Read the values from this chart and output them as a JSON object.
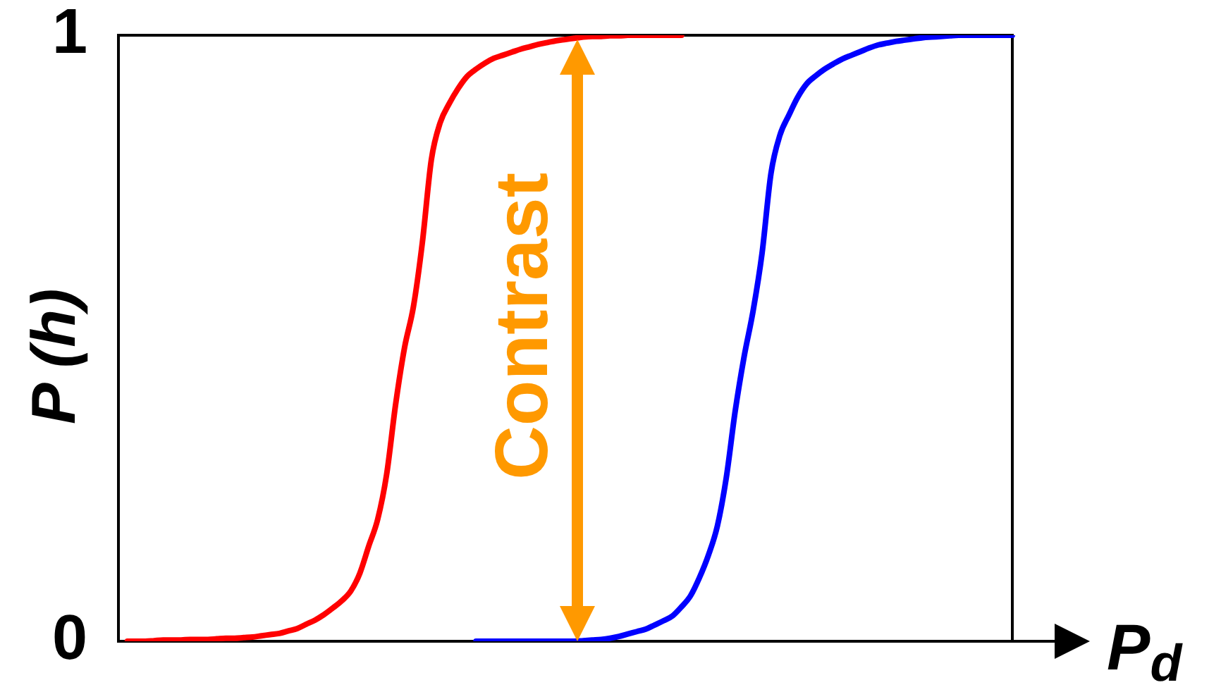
{
  "chart_data": {
    "type": "line",
    "xlabel": "P$_{d}$",
    "ylabel": "P (h)",
    "annotations": [
      "Contrast"
    ],
    "categories": [
      null,
      null,
      null,
      null,
      null,
      null,
      null,
      null,
      null,
      null,
      null,
      null,
      null,
      null,
      null,
      null,
      null,
      null,
      null,
      null,
      null,
      null,
      null,
      null,
      null,
      null,
      null,
      null,
      null,
      null,
      null,
      null,
      null,
      null,
      null,
      null,
      null,
      null,
      null,
      null,
      null,
      null,
      null,
      null,
      null,
      null,
      null,
      null,
      null,
      null,
      null,
      null,
      null,
      null,
      null,
      null,
      null,
      null,
      null,
      null,
      null,
      null,
      null,
      null,
      null,
      null,
      null,
      null,
      null,
      null,
      null,
      null,
      null,
      null,
      null,
      null,
      null,
      null,
      null,
      null,
      null,
      null,
      null,
      null,
      null,
      null,
      null,
      null,
      null,
      null,
      null,
      null,
      null,
      null,
      null,
      null,
      null,
      null,
      null,
      null,
      null
    ],
    "series": [
      {
        "color": "#ff0000",
        "values": [
          null,
          0,
          0,
          0,
          0.001,
          0.002,
          0.002,
          0.002,
          0.003,
          0.003,
          0.003,
          0.004,
          0.005,
          0.005,
          0.006,
          0.007,
          0.009,
          0.011,
          0.013,
          0.017,
          0.021,
          0.028,
          0.035,
          0.044,
          0.055,
          0.067,
          0.083,
          0.112,
          0.157,
          0.201,
          0.275,
          0.39,
          0.484,
          0.552,
          0.658,
          0.794,
          0.856,
          0.887,
          0.912,
          0.932,
          0.944,
          0.954,
          0.962,
          0.967,
          0.972,
          0.977,
          0.981,
          0.985,
          0.988,
          0.991,
          0.993,
          0.995,
          0.997,
          0.998,
          0.998,
          0.999,
          0.999,
          1,
          1,
          1,
          1,
          1,
          1,
          1,
          null,
          null,
          null,
          null,
          null,
          null,
          null,
          null,
          null,
          null,
          null,
          null,
          null,
          null,
          null,
          null,
          null,
          null,
          null,
          null,
          null,
          null,
          null,
          null,
          null,
          null,
          null,
          null,
          null,
          null,
          null,
          null,
          null,
          null,
          null,
          null,
          null
        ]
      },
      {
        "color": "#0000ff",
        "values": [
          null,
          null,
          null,
          null,
          null,
          null,
          null,
          null,
          null,
          null,
          null,
          null,
          null,
          null,
          null,
          null,
          null,
          null,
          null,
          null,
          null,
          null,
          null,
          null,
          null,
          null,
          null,
          null,
          null,
          null,
          null,
          null,
          null,
          null,
          null,
          null,
          null,
          null,
          null,
          null,
          0,
          0,
          0,
          0,
          0,
          0,
          0,
          0,
          0,
          0,
          0,
          0,
          0.001,
          0.002,
          0.003,
          0.005,
          0.008,
          0.012,
          0.016,
          0.02,
          0.027,
          0.034,
          0.042,
          0.057,
          0.075,
          0.105,
          0.142,
          0.19,
          0.27,
          0.38,
          0.47,
          0.545,
          0.64,
          0.772,
          0.835,
          0.868,
          0.898,
          0.92,
          0.933,
          0.944,
          0.953,
          0.961,
          0.967,
          0.973,
          0.979,
          0.984,
          0.987,
          0.99,
          0.992,
          0.994,
          0.996,
          0.997,
          0.998,
          0.999,
          1,
          1,
          1,
          1,
          1,
          1,
          1
        ]
      }
    ],
    "ylim": [
      0,
      1
    ],
    "yticks": [
      0,
      1
    ],
    "tick_labels": "y",
    "marker": "none",
    "line_style": "solid"
  }
}
